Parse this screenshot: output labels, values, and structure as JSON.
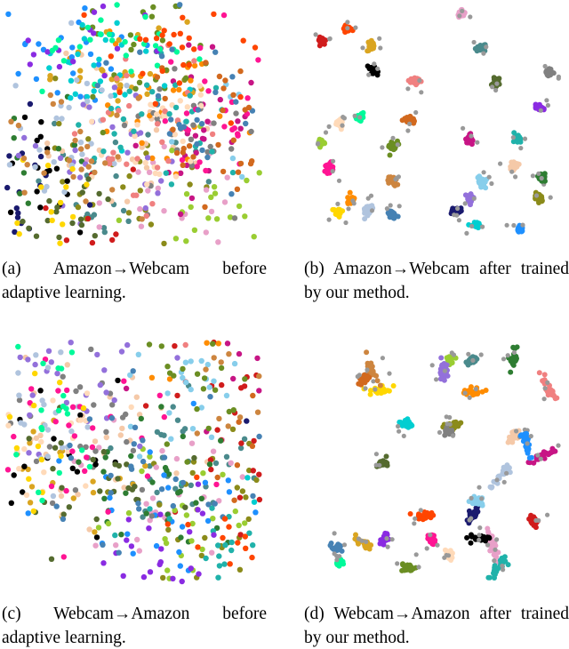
{
  "figure": {
    "panels": [
      {
        "caption": "(a) Amazon→Webcam before adaptive learning."
      },
      {
        "caption": "(b) Amazon→Webcam after trained by our method."
      },
      {
        "caption": "(c) Webcam→Amazon before adaptive learning."
      },
      {
        "caption": "(d) Webcam→Amazon after trained by our method."
      }
    ]
  }
}
